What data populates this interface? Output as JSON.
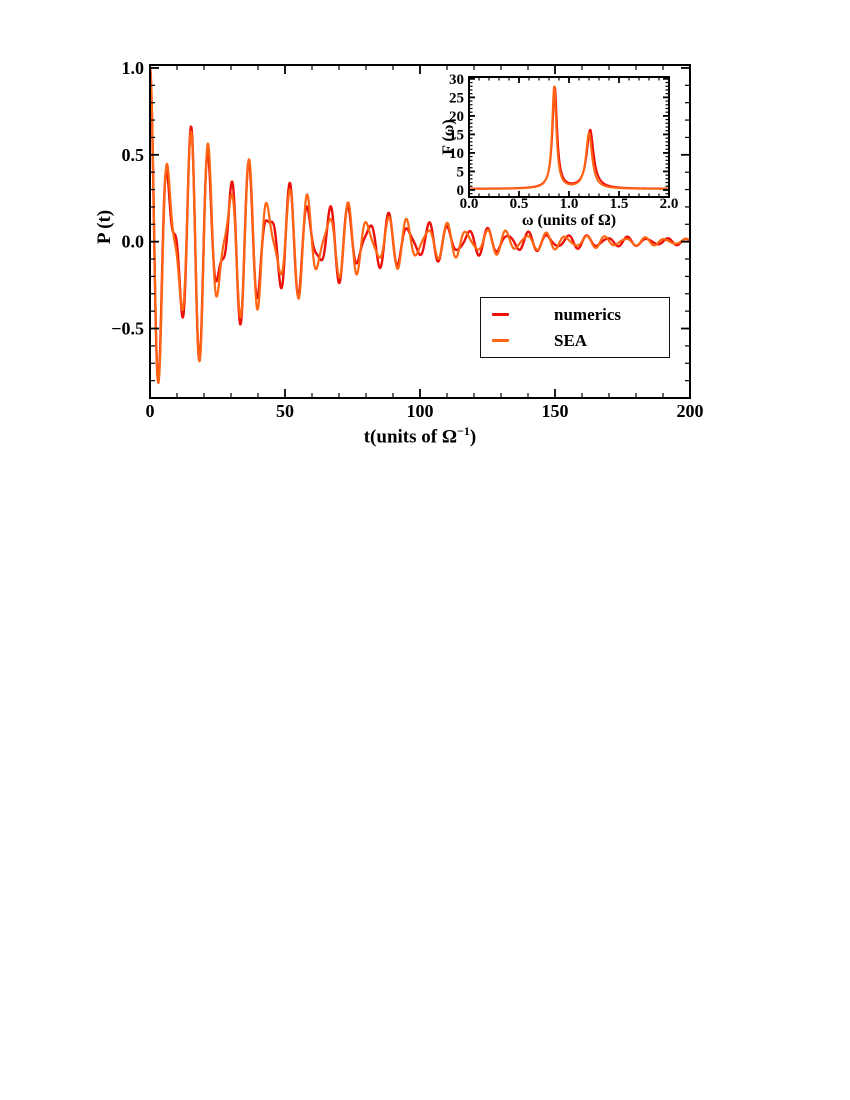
{
  "page": {
    "background": "#ffffff"
  },
  "colors": {
    "numerics": "#ed100a",
    "sea": "#ff6512",
    "axis": "#000000",
    "legend_border": "#111111"
  },
  "chart_data": [
    {
      "id": "main",
      "type": "line",
      "title": "",
      "xlabel_parts": {
        "pre": "t(units of ",
        "base": "Ω",
        "sup": "−1",
        "post": ")"
      },
      "ylabel": "P (t)",
      "xlim": [
        0,
        200
      ],
      "ylim": [
        -0.9,
        1.017
      ],
      "grid": false,
      "xticks": {
        "major": [
          0,
          50,
          100,
          150,
          200
        ],
        "labels": [
          "0",
          "50",
          "100",
          "150",
          "200"
        ],
        "minor_step": 10
      },
      "yticks": {
        "major": [
          1.0,
          0.5,
          0.0,
          -0.5
        ],
        "labels": [
          "1.0",
          "0.5",
          "0.0",
          "−0.5"
        ],
        "minor_step": 0.1
      },
      "description": "Damped two-frequency oscillation: P(0)=1, first minimum −0.85 at t≈3, beat period ≈18, amplitude decays to ≈0.02 by t=200",
      "series": [
        {
          "name": "numerics",
          "color": "#ed100a",
          "line_width": 2.4,
          "model": "damped_cosines",
          "components": [
            {
              "amp": 0.585,
              "freq": 0.853,
              "gamma": 0.0185
            },
            {
              "amp": 0.415,
              "freq": 1.208,
              "gamma": 0.0235
            }
          ],
          "x_start": 0,
          "x_end": 200,
          "x_step": 0.15
        },
        {
          "name": "SEA",
          "color": "#ff6512",
          "line_width": 2.2,
          "model": "damped_cosines",
          "components": [
            {
              "amp": 0.625,
              "freq": 0.8565,
              "gamma": 0.019
            },
            {
              "amp": 0.375,
              "freq": 1.198,
              "gamma": 0.0225
            }
          ],
          "x_start": 0,
          "x_end": 200,
          "x_step": 0.15
        }
      ],
      "legend": {
        "position": "lower right",
        "entries": [
          {
            "label": "numerics",
            "color": "#ed100a"
          },
          {
            "label": "SEA",
            "color": "#ff6512"
          }
        ]
      }
    },
    {
      "id": "inset",
      "type": "line",
      "title": "",
      "xlabel": "ω (units of Ω)",
      "ylabel": "F (ω)",
      "xlim": [
        0,
        2.0
      ],
      "ylim": [
        -1.9,
        30.5
      ],
      "grid": false,
      "xticks": {
        "major": [
          0,
          0.5,
          1.0,
          1.5,
          2.0
        ],
        "labels": [
          "0.0",
          "0.5",
          "1.0",
          "1.5",
          "2.0"
        ],
        "minor_step": 0.1
      },
      "yticks": {
        "major": [
          0,
          5,
          10,
          15,
          20,
          25,
          30
        ],
        "labels": [
          "0",
          "5",
          "10",
          "15",
          "20",
          "25",
          "30"
        ],
        "minor_step": 1
      },
      "peaks": {
        "peak1": {
          "omega": 0.86,
          "F": 27.5
        },
        "peak2": {
          "omega": 1.21,
          "F": 16
        }
      },
      "series": [
        {
          "name": "numerics",
          "color": "#ed100a",
          "line_width": 2.0,
          "model": "lorentzians",
          "baseline": 0.3,
          "components": [
            {
              "height": 27.2,
              "center": 0.858,
              "hwhm": 0.028
            },
            {
              "height": 15.8,
              "center": 1.212,
              "hwhm": 0.042
            }
          ],
          "x_start": 0,
          "x_end": 2,
          "x_step": 0.002
        },
        {
          "name": "SEA",
          "color": "#ff6512",
          "line_width": 2.0,
          "model": "lorentzians",
          "baseline": 0.25,
          "components": [
            {
              "height": 27.5,
              "center": 0.852,
              "hwhm": 0.026
            },
            {
              "height": 15.0,
              "center": 1.2,
              "hwhm": 0.037
            }
          ],
          "x_start": 0,
          "x_end": 2,
          "x_step": 0.002
        }
      ]
    }
  ]
}
